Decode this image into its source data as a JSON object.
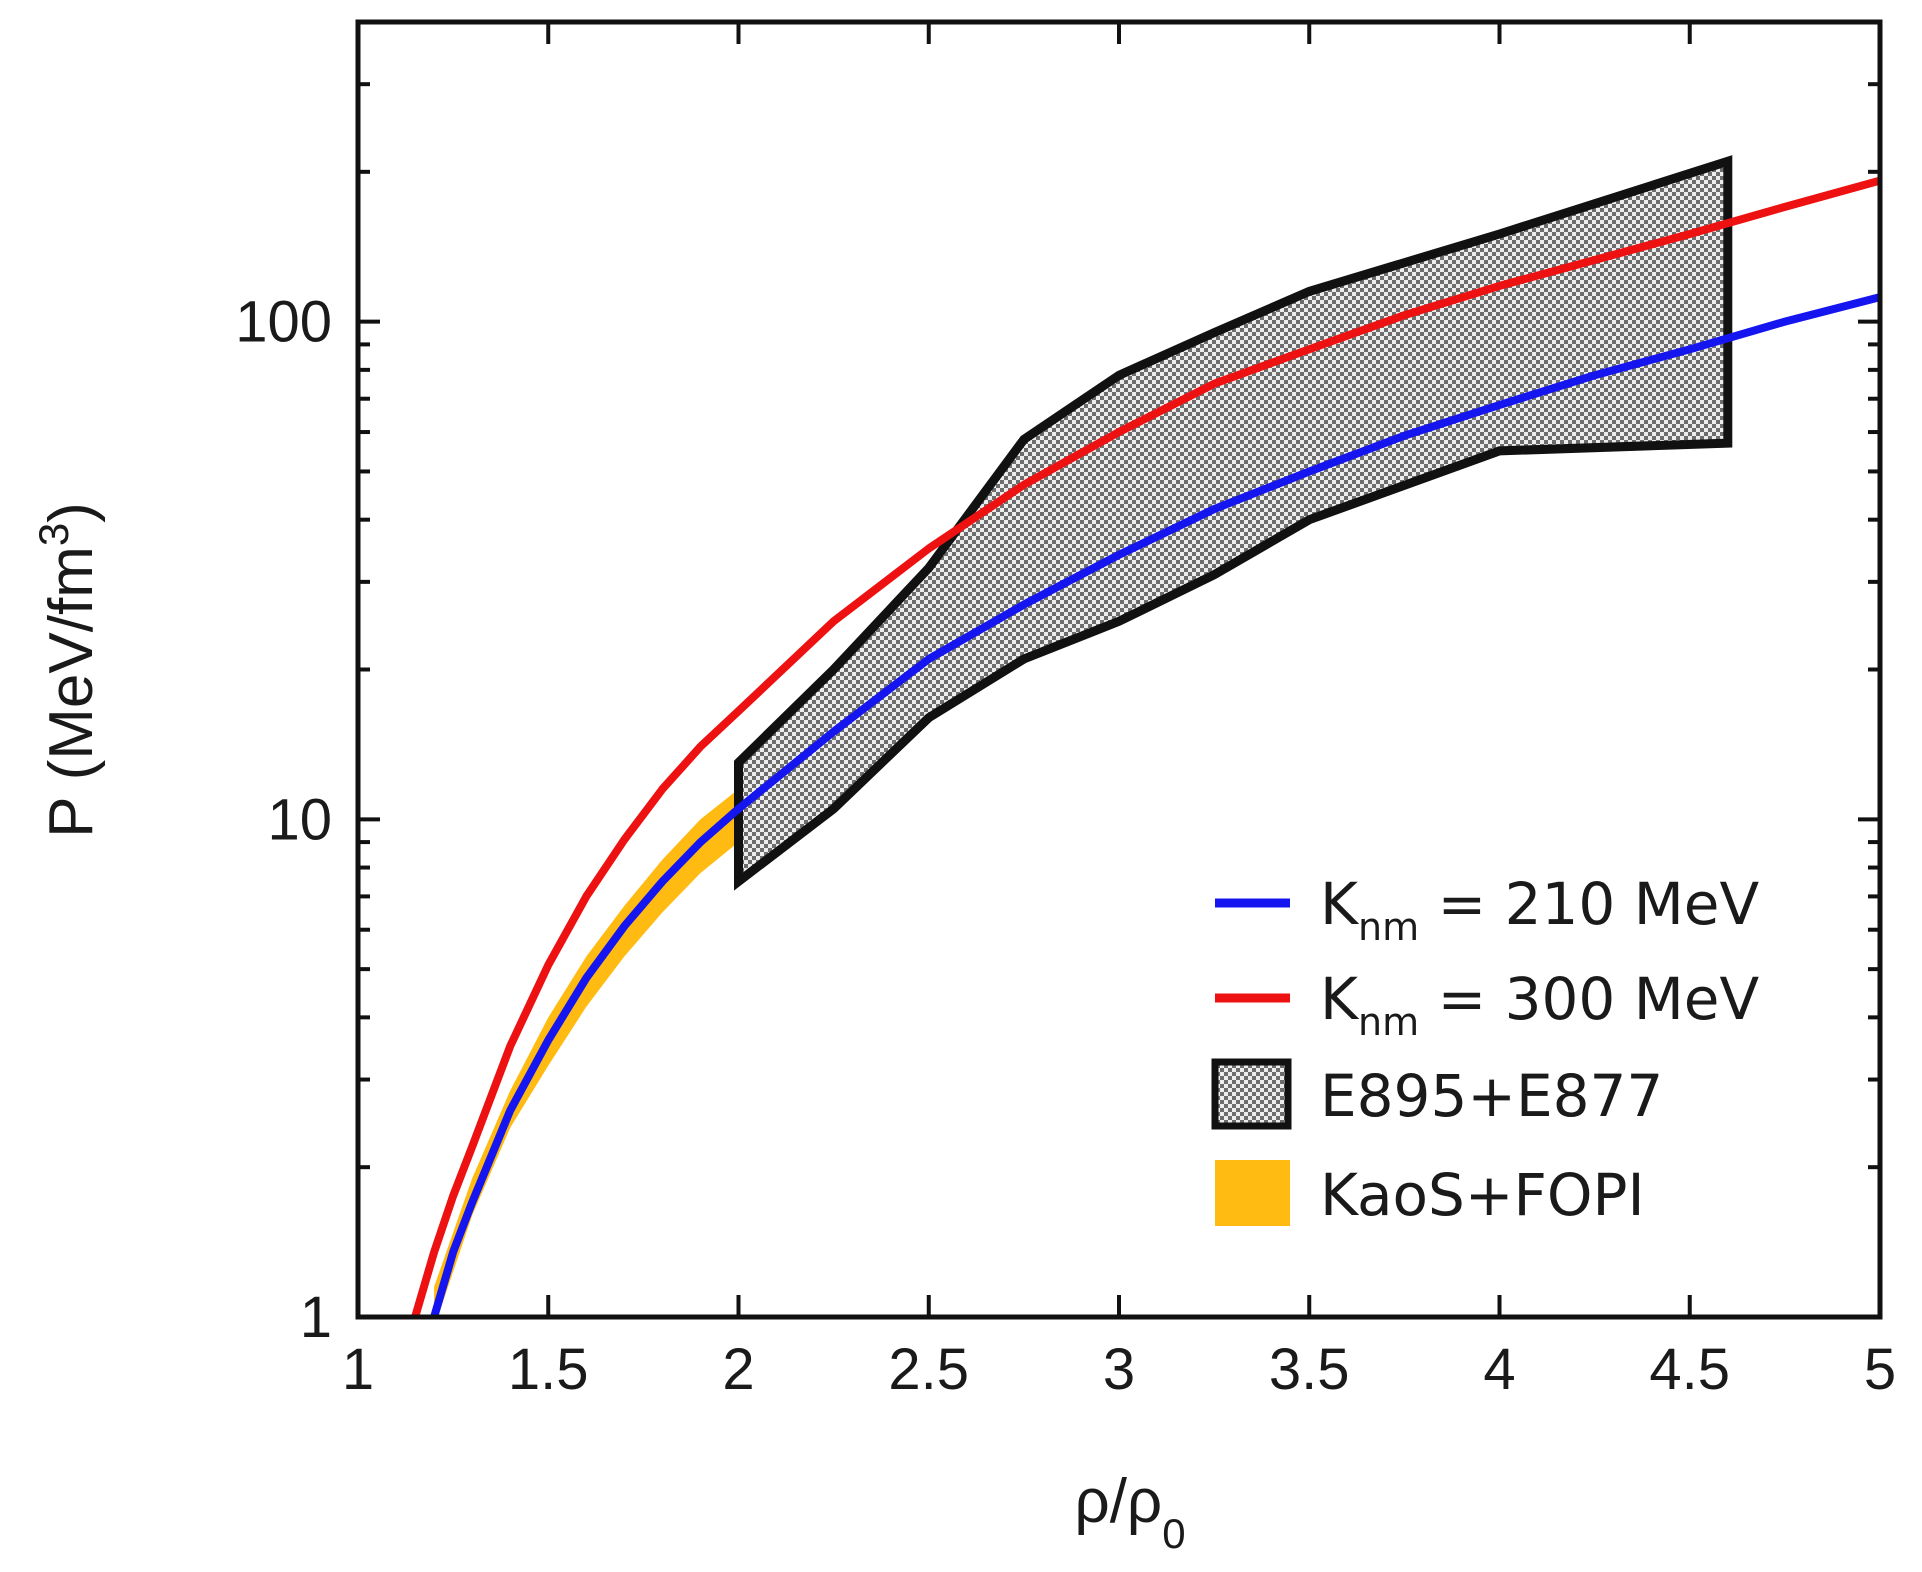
{
  "chart_data": {
    "type": "line",
    "title": "",
    "xlabel": "ρ/ρ0",
    "xlabel_main": "ρ/ρ",
    "xlabel_sub": "0",
    "ylabel": "P (MeV/fm3)",
    "ylabel_main": "P (MeV/fm",
    "ylabel_sup": "3",
    "ylabel_close": ")",
    "xlim": [
      1,
      5
    ],
    "ylim": [
      1,
      400
    ],
    "yscale": "log",
    "xticks": [
      1,
      1.5,
      2,
      2.5,
      3,
      3.5,
      4,
      4.5,
      5
    ],
    "xtick_labels": [
      "1",
      "1.5",
      "2",
      "2.5",
      "3",
      "3.5",
      "4",
      "4.5",
      "5"
    ],
    "yticks": [
      1,
      10,
      100
    ],
    "ytick_labels": [
      "1",
      "10",
      "100"
    ],
    "legend_position": "bottom-right",
    "series": [
      {
        "name": "K_nm = 210 MeV",
        "legend_main": "K",
        "legend_sub": "nm",
        "legend_rest": " = 210 MeV",
        "color": "#1515f0",
        "x": [
          1.2,
          1.25,
          1.3,
          1.4,
          1.5,
          1.6,
          1.7,
          1.8,
          1.9,
          2.0,
          2.25,
          2.5,
          2.75,
          3.0,
          3.25,
          3.5,
          3.75,
          4.0,
          4.25,
          4.5,
          4.75,
          5.0
        ],
        "y": [
          1.0,
          1.35,
          1.7,
          2.6,
          3.6,
          4.8,
          6.1,
          7.5,
          9.0,
          10.5,
          15.0,
          21.0,
          27.0,
          34.0,
          42.0,
          50.0,
          59.0,
          68.0,
          78.0,
          88.0,
          100.0,
          112.0
        ]
      },
      {
        "name": "K_nm = 300 MeV",
        "legend_main": "K",
        "legend_sub": "nm",
        "legend_rest": " = 300 MeV",
        "color": "#ee1111",
        "x": [
          1.15,
          1.2,
          1.25,
          1.3,
          1.4,
          1.5,
          1.6,
          1.7,
          1.8,
          1.9,
          2.0,
          2.25,
          2.5,
          2.75,
          3.0,
          3.25,
          3.5,
          3.75,
          4.0,
          4.25,
          4.5,
          4.75,
          5.0
        ],
        "y": [
          1.0,
          1.35,
          1.75,
          2.2,
          3.5,
          5.1,
          7.0,
          9.1,
          11.5,
          14.0,
          16.5,
          25.0,
          35.0,
          47.0,
          60.0,
          75.0,
          88.0,
          103.0,
          118.0,
          133.0,
          150.0,
          170.0,
          192.0
        ]
      }
    ],
    "bands": [
      {
        "name": "E895+E877",
        "style": "checkered-gray",
        "x_lower": [
          2.0,
          2.25,
          2.5,
          2.75,
          3.0,
          3.25,
          3.5,
          4.0,
          4.6
        ],
        "y_lower": [
          7.5,
          10.5,
          16.0,
          21.0,
          25.0,
          31.0,
          40.0,
          55.0,
          57.0
        ],
        "x_upper": [
          2.0,
          2.25,
          2.5,
          2.75,
          3.0,
          3.25,
          3.5,
          4.0,
          4.6
        ],
        "y_upper": [
          13.0,
          20.0,
          32.0,
          58.0,
          78.0,
          95.0,
          115.0,
          150.0,
          210.0
        ]
      },
      {
        "name": "KaoS+FOPI",
        "style": "solid",
        "color": "#ffbb11",
        "x_lower": [
          1.2,
          1.3,
          1.4,
          1.5,
          1.6,
          1.7,
          1.8,
          1.9,
          2.0
        ],
        "y_lower": [
          0.95,
          1.6,
          2.4,
          3.2,
          4.2,
          5.3,
          6.5,
          7.8,
          9.0
        ],
        "x_upper": [
          1.2,
          1.3,
          1.4,
          1.5,
          1.6,
          1.7,
          1.8,
          1.9,
          2.0
        ],
        "y_upper": [
          1.15,
          1.9,
          2.85,
          4.0,
          5.3,
          6.7,
          8.3,
          10.0,
          11.5
        ]
      }
    ]
  }
}
